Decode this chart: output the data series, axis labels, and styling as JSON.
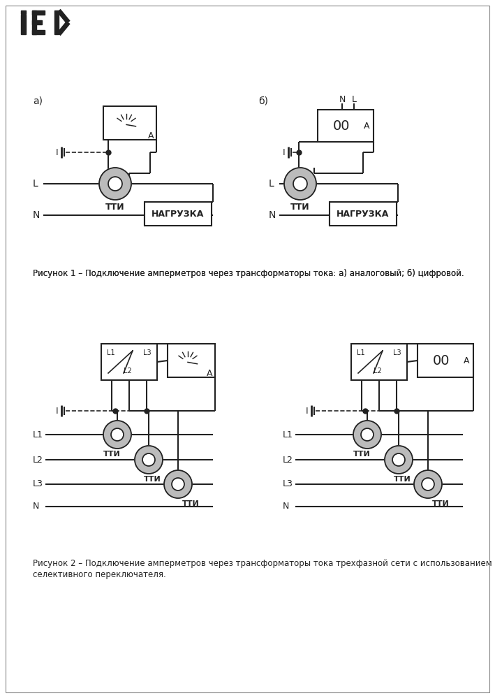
{
  "bg_color": "#ffffff",
  "line_color": "#222222",
  "text_color": "#222222",
  "gray_color": "#bbbbbb",
  "fig_caption1": "Рисунок 1 – Подключение амперметров через трансформаторы тока: а) аналоговый; б) цифровой.",
  "fig_caption2_1": "Рисунок 2 – Подключение амперметров через трансформаторы тока трехфазной сети с использованием",
  "fig_caption2_2": "селективного переключателя.",
  "label_a": "а)",
  "label_b": "б)",
  "label_TTI": "ТТИ",
  "label_load": "НАГРУЗКА",
  "label_L": "L",
  "label_N": "N",
  "label_A_meter": "A",
  "label_00A": "00",
  "label_A_small": "А",
  "label_NL_N": "N",
  "label_NL_L": "L",
  "label_I": "I",
  "label_L1": "L1",
  "label_L2": "L2",
  "label_L3": "L3"
}
